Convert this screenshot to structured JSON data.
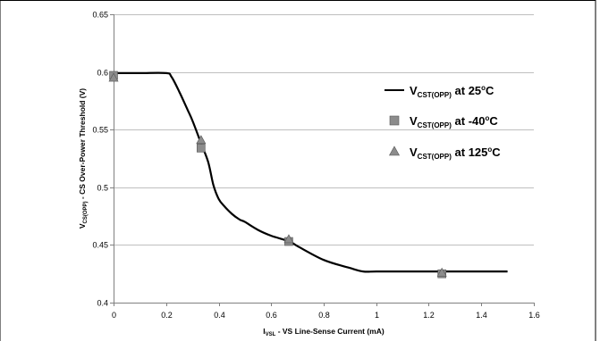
{
  "chart_data": {
    "type": "line",
    "xlim": [
      0,
      1.6
    ],
    "ylim": [
      0.4,
      0.65
    ],
    "x_ticks": [
      "0",
      "0.2",
      "0.4",
      "0.6",
      "0.8",
      "1",
      "1.2",
      "1.4",
      "1.6"
    ],
    "y_ticks": [
      "0.4",
      "0.45",
      "0.5",
      "0.55",
      "0.6",
      "0.65"
    ],
    "grid": true,
    "legend_position": "right",
    "xlabel": {
      "base": "I",
      "sub": "VSL",
      "rest": " - VS Line-Sense Current (mA)"
    },
    "ylabel": {
      "base": "V",
      "sub": "CS(OPP)",
      "rest": " - CS Over-Power Threshold (V)"
    },
    "series": [
      {
        "name": {
          "base": "V",
          "sub": "CST(OPP)",
          "rest": " at 25",
          "sup": "o",
          "tail": "C"
        },
        "style": "line",
        "color": "#000000",
        "x": [
          0,
          0.1,
          0.2,
          0.22,
          0.25,
          0.28,
          0.3,
          0.33,
          0.36,
          0.38,
          0.4,
          0.42,
          0.45,
          0.48,
          0.5,
          0.55,
          0.6,
          0.67,
          0.7,
          0.8,
          0.9,
          0.95,
          1.0,
          1.1,
          1.2,
          1.3,
          1.4,
          1.5
        ],
        "y": [
          0.599,
          0.599,
          0.599,
          0.596,
          0.583,
          0.568,
          0.558,
          0.54,
          0.522,
          0.502,
          0.49,
          0.484,
          0.477,
          0.472,
          0.47,
          0.463,
          0.458,
          0.453,
          0.449,
          0.437,
          0.43,
          0.427,
          0.427,
          0.427,
          0.427,
          0.427,
          0.427,
          0.427
        ]
      },
      {
        "name": {
          "base": "V",
          "sub": "CST(OPP)",
          "rest": " at -40",
          "sup": "o",
          "tail": "C"
        },
        "style": "square",
        "color": "#8c8c8c",
        "x": [
          0,
          0.333,
          0.667,
          1.25
        ],
        "y": [
          0.597,
          0.534,
          0.453,
          0.425
        ]
      },
      {
        "name": {
          "base": "V",
          "sub": "CST(OPP)",
          "rest": " at 125",
          "sup": "o",
          "tail": "C"
        },
        "style": "triangle",
        "color": "#8c8c8c",
        "x": [
          0,
          0.333,
          0.667,
          1.25
        ],
        "y": [
          0.595,
          0.541,
          0.455,
          0.426
        ]
      }
    ]
  }
}
